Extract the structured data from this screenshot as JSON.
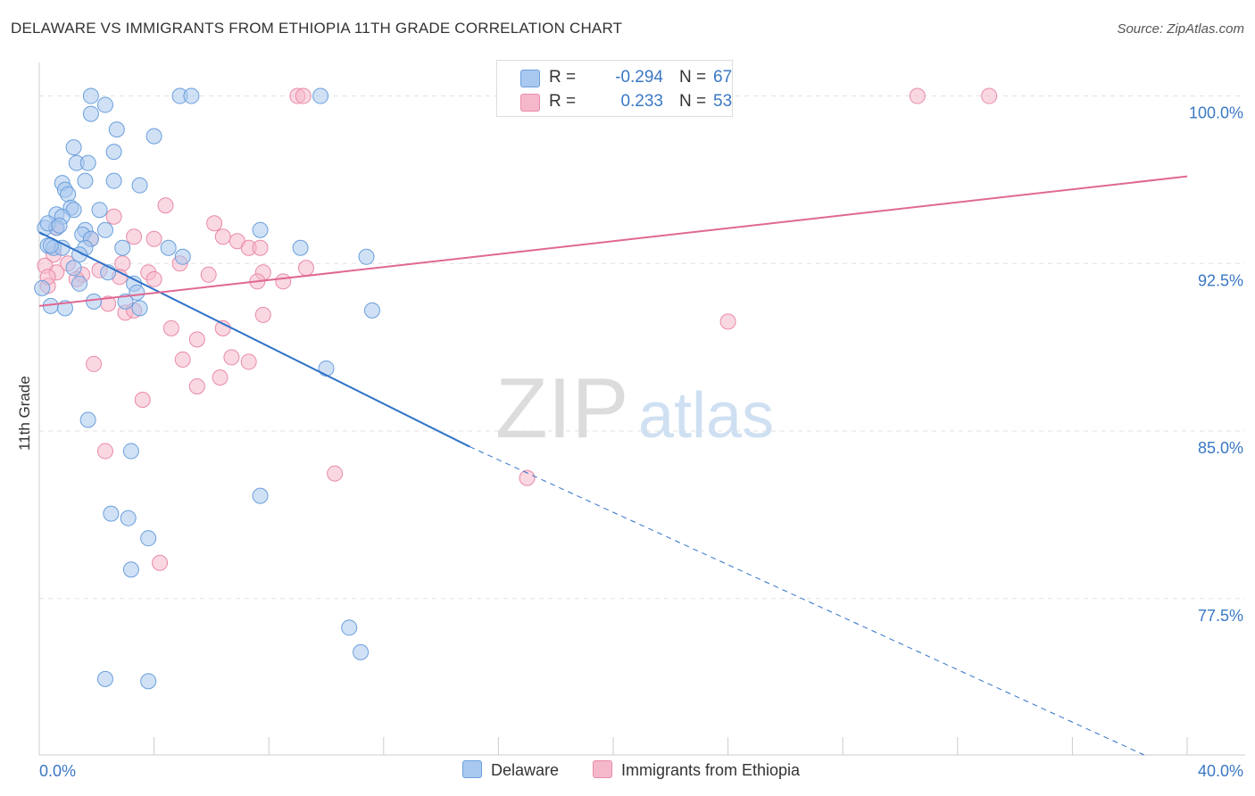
{
  "header": {
    "title": "DELAWARE VS IMMIGRANTS FROM ETHIOPIA 11TH GRADE CORRELATION CHART",
    "source": "Source: ZipAtlas.com"
  },
  "watermark": {
    "zip": "ZIP",
    "atlas": "atlas"
  },
  "legend": {
    "rows": [
      {
        "r_label": "R =",
        "r_value": "-0.294",
        "n_label": "N =",
        "n_value": "67",
        "color": "#a9c8ef"
      },
      {
        "r_label": "R =",
        "r_value": "0.233",
        "n_label": "N =",
        "n_value": "53",
        "color": "#f5b8ca"
      }
    ]
  },
  "bottom_legend": {
    "series1": "Delaware",
    "series2": "Immigrants from Ethiopia"
  },
  "colors": {
    "blue_fill": "#a9c8ef",
    "blue_stroke": "#6a9fdc",
    "blue_line": "#2f72c8",
    "pink_fill": "#f5b8ca",
    "pink_stroke": "#e98aa8",
    "pink_line": "#e06892",
    "tick_text": "#3a78c4",
    "grid": "#e2e2e2"
  },
  "chart_data": {
    "type": "scatter",
    "title": "DELAWARE VS IMMIGRANTS FROM ETHIOPIA 11TH GRADE CORRELATION CHART",
    "xlabel": "",
    "ylabel": "11th Grade",
    "xlim": [
      0,
      40
    ],
    "ylim": [
      70.5,
      101.5
    ],
    "x_tick_labels": [
      "0.0%",
      "40.0%"
    ],
    "y_ticks": [
      77.5,
      85.0,
      92.5,
      100.0
    ],
    "y_tick_labels": [
      "77.5%",
      "85.0%",
      "92.5%",
      "100.0%"
    ],
    "grid": true,
    "legend_position": "top-center",
    "series": [
      {
        "name": "Delaware",
        "r": -0.294,
        "n": 67,
        "trend": {
          "x0": 0.0,
          "y0": 93.9,
          "x1": 15.0,
          "y1": 84.3,
          "dash_to_x": 38.5,
          "dash_to_y": 69.2
        },
        "points": [
          [
            1.8,
            100.0
          ],
          [
            4.9,
            100.0
          ],
          [
            5.3,
            100.0
          ],
          [
            9.8,
            100.0
          ],
          [
            2.3,
            99.6
          ],
          [
            1.8,
            99.2
          ],
          [
            2.7,
            98.5
          ],
          [
            4.0,
            98.2
          ],
          [
            1.2,
            97.7
          ],
          [
            2.6,
            97.5
          ],
          [
            1.3,
            97.0
          ],
          [
            1.7,
            97.0
          ],
          [
            1.6,
            96.2
          ],
          [
            2.6,
            96.2
          ],
          [
            0.8,
            96.1
          ],
          [
            3.5,
            96.0
          ],
          [
            0.9,
            95.8
          ],
          [
            1.0,
            95.6
          ],
          [
            1.1,
            95.0
          ],
          [
            1.2,
            94.9
          ],
          [
            2.1,
            94.9
          ],
          [
            0.6,
            94.7
          ],
          [
            0.8,
            94.6
          ],
          [
            0.2,
            94.1
          ],
          [
            0.6,
            94.1
          ],
          [
            1.6,
            94.0
          ],
          [
            2.3,
            94.0
          ],
          [
            7.7,
            94.0
          ],
          [
            1.5,
            93.8
          ],
          [
            1.8,
            93.6
          ],
          [
            0.3,
            93.3
          ],
          [
            0.5,
            93.2
          ],
          [
            0.8,
            93.2
          ],
          [
            0.4,
            93.3
          ],
          [
            1.6,
            93.2
          ],
          [
            2.9,
            93.2
          ],
          [
            4.5,
            93.2
          ],
          [
            9.1,
            93.2
          ],
          [
            1.4,
            92.9
          ],
          [
            5.0,
            92.8
          ],
          [
            11.4,
            92.8
          ],
          [
            1.2,
            92.3
          ],
          [
            2.4,
            92.1
          ],
          [
            3.3,
            91.6
          ],
          [
            1.4,
            91.6
          ],
          [
            0.1,
            91.4
          ],
          [
            3.4,
            91.2
          ],
          [
            1.9,
            90.8
          ],
          [
            3.0,
            90.8
          ],
          [
            0.4,
            90.6
          ],
          [
            0.9,
            90.5
          ],
          [
            3.5,
            90.5
          ],
          [
            11.6,
            90.4
          ],
          [
            10.0,
            87.8
          ],
          [
            1.7,
            85.5
          ],
          [
            3.2,
            84.1
          ],
          [
            7.7,
            82.1
          ],
          [
            2.5,
            81.3
          ],
          [
            3.1,
            81.1
          ],
          [
            3.8,
            80.2
          ],
          [
            3.2,
            78.8
          ],
          [
            10.8,
            76.2
          ],
          [
            11.2,
            75.1
          ],
          [
            2.3,
            73.9
          ],
          [
            3.8,
            73.8
          ],
          [
            0.3,
            94.3
          ],
          [
            0.7,
            94.2
          ]
        ]
      },
      {
        "name": "Immigrants from Ethiopia",
        "r": 0.233,
        "n": 53,
        "trend": {
          "x0": 0.0,
          "y0": 90.6,
          "x1": 40.0,
          "y1": 96.4
        },
        "points": [
          [
            9.0,
            100.0
          ],
          [
            9.2,
            100.0
          ],
          [
            30.6,
            100.0
          ],
          [
            33.1,
            100.0
          ],
          [
            4.4,
            95.1
          ],
          [
            2.6,
            94.6
          ],
          [
            6.1,
            94.3
          ],
          [
            0.6,
            94.1
          ],
          [
            3.3,
            93.7
          ],
          [
            4.0,
            93.6
          ],
          [
            6.4,
            93.7
          ],
          [
            6.9,
            93.5
          ],
          [
            1.8,
            93.6
          ],
          [
            7.3,
            93.2
          ],
          [
            7.7,
            93.2
          ],
          [
            0.5,
            92.9
          ],
          [
            0.2,
            92.4
          ],
          [
            1.0,
            92.5
          ],
          [
            2.9,
            92.5
          ],
          [
            4.9,
            92.5
          ],
          [
            0.6,
            92.1
          ],
          [
            2.1,
            92.2
          ],
          [
            3.8,
            92.1
          ],
          [
            1.5,
            92.0
          ],
          [
            5.9,
            92.0
          ],
          [
            7.8,
            92.1
          ],
          [
            9.3,
            92.3
          ],
          [
            1.3,
            91.8
          ],
          [
            2.8,
            91.9
          ],
          [
            4.0,
            91.8
          ],
          [
            7.6,
            91.7
          ],
          [
            8.5,
            91.7
          ],
          [
            0.3,
            91.5
          ],
          [
            2.4,
            90.7
          ],
          [
            3.0,
            90.3
          ],
          [
            3.3,
            90.4
          ],
          [
            7.8,
            90.2
          ],
          [
            24.0,
            89.9
          ],
          [
            4.6,
            89.6
          ],
          [
            6.4,
            89.6
          ],
          [
            5.5,
            89.1
          ],
          [
            5.0,
            88.2
          ],
          [
            6.7,
            88.3
          ],
          [
            7.3,
            88.1
          ],
          [
            1.9,
            88.0
          ],
          [
            6.3,
            87.4
          ],
          [
            5.5,
            87.0
          ],
          [
            3.6,
            86.4
          ],
          [
            2.3,
            84.1
          ],
          [
            10.3,
            83.1
          ],
          [
            17.0,
            82.9
          ],
          [
            4.2,
            79.1
          ],
          [
            0.3,
            91.9
          ]
        ]
      }
    ]
  }
}
